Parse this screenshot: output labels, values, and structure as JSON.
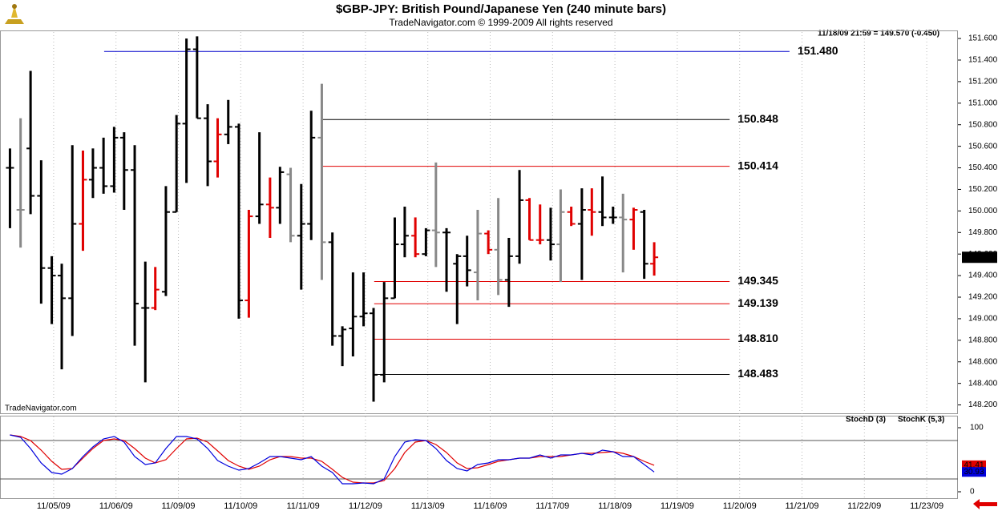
{
  "header": {
    "title": "$GBP-JPY:  British Pound/Japanese Yen  (240 minute bars)",
    "copyright": "TradeNavigator.com © 1999-2009 All rights reserved",
    "last_quote": "11/18/09 21:59 = 149.570 (-0.450)"
  },
  "watermark": "TradeNavigator.com",
  "chart_data": [
    {
      "type": "ohlc",
      "x": [
        -0.7,
        -0.53,
        -0.37,
        -0.2,
        -0.03,
        0.13,
        0.3,
        0.47,
        0.63,
        0.8,
        0.97,
        1.13,
        1.3,
        1.47,
        1.63,
        1.8,
        1.97,
        2.13,
        2.3,
        2.47,
        2.63,
        2.8,
        2.97,
        3.13,
        3.3,
        3.47,
        3.63,
        3.8,
        3.97,
        4.13,
        4.3,
        4.47,
        4.63,
        4.8,
        4.97,
        5.13,
        5.3,
        5.47,
        5.63,
        5.8,
        5.97,
        6.13,
        6.3,
        6.47,
        6.63,
        6.8,
        6.97,
        7.13,
        7.3,
        7.47,
        7.63,
        7.8,
        7.97,
        8.13,
        8.3,
        8.47,
        8.63,
        8.8,
        8.97,
        9.13,
        9.3,
        9.47,
        9.63
      ],
      "open": [
        150.4,
        150.01,
        150.58,
        150.14,
        149.47,
        149.4,
        149.19,
        149.88,
        150.29,
        150.4,
        150.23,
        150.68,
        150.38,
        149.1,
        149.1,
        149.25,
        149.99,
        150.81,
        151.5,
        150.86,
        150.46,
        150.71,
        150.78,
        149.17,
        149.95,
        150.06,
        150.03,
        150.34,
        149.77,
        149.88,
        150.68,
        149.71,
        148.84,
        148.91,
        149.02,
        149.05,
        148.48,
        149.19,
        149.69,
        149.77,
        149.6,
        149.82,
        149.8,
        149.51,
        149.58,
        149.43,
        149.79,
        149.64,
        149.36,
        149.58,
        150.1,
        149.73,
        149.73,
        149.69,
        149.99,
        149.88,
        150.01,
        149.99,
        149.94,
        149.94,
        149.92,
        149.99,
        149.51
      ],
      "high": [
        150.58,
        150.86,
        151.3,
        150.47,
        149.58,
        149.51,
        150.61,
        150.56,
        150.58,
        150.68,
        150.78,
        150.73,
        150.61,
        149.53,
        149.48,
        150.23,
        150.89,
        151.6,
        151.62,
        150.99,
        150.86,
        151.03,
        150.81,
        150.01,
        150.73,
        150.31,
        150.41,
        150.4,
        150.25,
        150.93,
        151.18,
        149.8,
        148.93,
        149.43,
        149.43,
        149.1,
        149.34,
        149.94,
        150.04,
        149.94,
        149.84,
        150.45,
        149.84,
        149.6,
        149.77,
        150.01,
        149.82,
        150.12,
        149.75,
        150.38,
        150.12,
        150.06,
        150.03,
        150.2,
        150.04,
        150.21,
        150.21,
        150.32,
        150.04,
        150.16,
        150.03,
        150.01,
        149.71
      ],
      "low": [
        149.84,
        149.66,
        149.97,
        149.14,
        148.95,
        148.53,
        148.84,
        149.63,
        150.12,
        150.16,
        150.17,
        150.01,
        148.75,
        148.41,
        149.08,
        149.21,
        149.99,
        150.26,
        150.86,
        150.23,
        150.31,
        150.62,
        149.0,
        149.01,
        149.88,
        149.75,
        149.88,
        149.71,
        149.27,
        149.73,
        149.36,
        148.75,
        148.56,
        148.65,
        148.93,
        148.23,
        148.41,
        149.19,
        149.57,
        149.57,
        149.58,
        149.48,
        149.25,
        148.95,
        149.3,
        149.17,
        149.6,
        149.22,
        149.11,
        149.51,
        149.73,
        149.69,
        149.54,
        149.34,
        149.86,
        149.36,
        149.77,
        149.86,
        149.88,
        149.43,
        149.64,
        149.37,
        149.4
      ],
      "close": [
        150.4,
        150.01,
        150.14,
        149.47,
        149.4,
        149.19,
        149.88,
        150.29,
        150.4,
        150.23,
        150.68,
        150.38,
        149.14,
        149.1,
        149.27,
        149.99,
        150.81,
        151.5,
        150.86,
        150.46,
        150.71,
        150.78,
        149.17,
        149.95,
        150.06,
        150.03,
        150.36,
        149.77,
        149.88,
        150.68,
        149.71,
        148.84,
        148.9,
        149.02,
        149.05,
        148.48,
        149.19,
        149.69,
        149.77,
        149.6,
        149.82,
        149.8,
        149.8,
        149.58,
        149.45,
        149.79,
        149.64,
        149.36,
        149.58,
        150.1,
        149.73,
        149.73,
        149.69,
        149.99,
        149.88,
        150.01,
        149.99,
        149.94,
        149.94,
        149.92,
        150.01,
        149.51,
        149.57
      ],
      "bar_colors": [
        "#000000",
        "#888888",
        "#000000",
        "#000000",
        "#000000",
        "#000000",
        "#000000",
        "#e00000",
        "#000000",
        "#000000",
        "#000000",
        "#000000",
        "#000000",
        "#000000",
        "#e00000",
        "#000000",
        "#000000",
        "#000000",
        "#000000",
        "#000000",
        "#e00000",
        "#000000",
        "#000000",
        "#e00000",
        "#000000",
        "#e00000",
        "#000000",
        "#888888",
        "#000000",
        "#000000",
        "#888888",
        "#000000",
        "#000000",
        "#000000",
        "#000000",
        "#000000",
        "#000000",
        "#000000",
        "#000000",
        "#e00000",
        "#000000",
        "#888888",
        "#000000",
        "#000000",
        "#000000",
        "#888888",
        "#e00000",
        "#888888",
        "#000000",
        "#000000",
        "#e00000",
        "#e00000",
        "#000000",
        "#888888",
        "#e00000",
        "#000000",
        "#e00000",
        "#000000",
        "#000000",
        "#888888",
        "#e00000",
        "#000000",
        "#e00000"
      ],
      "xlim": [
        -0.86,
        14.5
      ],
      "xticks": [
        {
          "value": 0,
          "label": "11/05/09"
        },
        {
          "value": 1,
          "label": "11/06/09"
        },
        {
          "value": 2,
          "label": "11/09/09"
        },
        {
          "value": 3,
          "label": "11/10/09"
        },
        {
          "value": 4,
          "label": "11/11/09"
        },
        {
          "value": 5,
          "label": "11/12/09"
        },
        {
          "value": 6,
          "label": "11/13/09"
        },
        {
          "value": 7,
          "label": "11/16/09"
        },
        {
          "value": 8,
          "label": "11/17/09"
        },
        {
          "value": 9,
          "label": "11/18/09"
        },
        {
          "value": 10,
          "label": "11/19/09"
        },
        {
          "value": 11,
          "label": "11/20/09"
        },
        {
          "value": 12,
          "label": "11/21/09"
        },
        {
          "value": 13,
          "label": "11/22/09"
        },
        {
          "value": 14,
          "label": "11/23/09"
        }
      ],
      "ylim": [
        148.13,
        151.66
      ],
      "yticks": [
        {
          "value": 148.2,
          "label": "148.200"
        },
        {
          "value": 148.4,
          "label": "148.400"
        },
        {
          "value": 148.6,
          "label": "148.600"
        },
        {
          "value": 148.8,
          "label": "148.800"
        },
        {
          "value": 149.0,
          "label": "149.000"
        },
        {
          "value": 149.2,
          "label": "149.200"
        },
        {
          "value": 149.4,
          "label": "149.400"
        },
        {
          "value": 149.6,
          "label": "149.600"
        },
        {
          "value": 149.8,
          "label": "149.800"
        },
        {
          "value": 150.0,
          "label": "150.000"
        },
        {
          "value": 150.2,
          "label": "150.200"
        },
        {
          "value": 150.4,
          "label": "150.400"
        },
        {
          "value": 150.6,
          "label": "150.600"
        },
        {
          "value": 150.8,
          "label": "150.800"
        },
        {
          "value": 151.0,
          "label": "151.000"
        },
        {
          "value": 151.2,
          "label": "151.200"
        },
        {
          "value": 151.4,
          "label": "151.400"
        },
        {
          "value": 151.6,
          "label": "151.600"
        }
      ],
      "levels": [
        {
          "value": 151.48,
          "label": "151.480",
          "color": "#0000cc",
          "x_start": 0.81,
          "x_end": 11.8
        },
        {
          "value": 150.848,
          "label": "150.848",
          "color": "#000000",
          "x_start": 4.31,
          "x_end": 10.84
        },
        {
          "value": 150.414,
          "label": "150.414",
          "color": "#e00000",
          "x_start": 4.31,
          "x_end": 10.84
        },
        {
          "value": 149.345,
          "label": "149.345",
          "color": "#e00000",
          "x_start": 5.14,
          "x_end": 10.84
        },
        {
          "value": 149.139,
          "label": "149.139",
          "color": "#e00000",
          "x_start": 5.14,
          "x_end": 10.84
        },
        {
          "value": 148.81,
          "label": "148.810",
          "color": "#e00000",
          "x_start": 5.14,
          "x_end": 10.84
        },
        {
          "value": 148.483,
          "label": "148.483",
          "color": "#000000",
          "x_start": 5.14,
          "x_end": 10.84
        }
      ],
      "last_price": {
        "value": 149.57,
        "label": "149.570"
      }
    },
    {
      "type": "line",
      "x": [
        -0.7,
        -0.53,
        -0.37,
        -0.2,
        -0.03,
        0.13,
        0.3,
        0.47,
        0.63,
        0.8,
        0.97,
        1.13,
        1.3,
        1.47,
        1.63,
        1.8,
        1.97,
        2.13,
        2.3,
        2.47,
        2.63,
        2.8,
        2.97,
        3.13,
        3.3,
        3.47,
        3.63,
        3.8,
        3.97,
        4.13,
        4.3,
        4.47,
        4.63,
        4.8,
        4.97,
        5.13,
        5.3,
        5.47,
        5.63,
        5.8,
        5.97,
        6.13,
        6.3,
        6.47,
        6.63,
        6.8,
        6.97,
        7.13,
        7.3,
        7.47,
        7.63,
        7.8,
        7.97,
        8.13,
        8.3,
        8.47,
        8.63,
        8.8,
        8.97,
        9.13,
        9.3,
        9.47,
        9.63
      ],
      "series": [
        {
          "name": "StochD (3)",
          "color": "#e00000",
          "values": [
            88.8,
            86.3,
            80,
            65,
            47.5,
            35,
            36.3,
            52.5,
            67.5,
            80,
            82.5,
            80,
            67.5,
            52.5,
            45,
            50,
            67.5,
            82.5,
            83.8,
            77.5,
            63.8,
            48.8,
            40,
            35,
            40,
            50,
            55,
            55,
            52.5,
            52.5,
            47.5,
            35,
            22.5,
            15,
            13.8,
            13.8,
            17.5,
            36.3,
            61.3,
            77.5,
            80,
            73.8,
            61.3,
            45,
            36.3,
            37.5,
            42.5,
            47.5,
            50,
            52.5,
            52.5,
            55,
            55,
            55,
            57.5,
            60,
            60,
            61.3,
            62.5,
            60,
            55,
            47.5,
            41.41
          ]
        },
        {
          "name": "StochK (5,3)",
          "color": "#0000dd",
          "values": [
            88.8,
            85,
            67.5,
            45,
            30,
            27.5,
            36.3,
            55,
            70,
            82.5,
            86.3,
            77.5,
            55,
            42.5,
            45,
            67.5,
            86.3,
            86.3,
            82.5,
            67.5,
            48.8,
            40,
            33.8,
            36.3,
            45,
            55,
            55,
            52.5,
            50,
            55,
            40,
            30,
            12.5,
            12.5,
            13.8,
            12.5,
            20,
            55,
            77.5,
            81.3,
            80,
            67.5,
            48.8,
            36.3,
            32.5,
            42.5,
            45,
            50,
            50,
            52.5,
            52.5,
            57.5,
            52.5,
            57.5,
            57.5,
            60,
            57.5,
            65,
            62.5,
            55,
            55,
            42.5,
            30.93
          ]
        }
      ],
      "ylim": [
        -10,
        117.5
      ],
      "yticks": [
        0,
        100
      ],
      "levels": [
        20,
        80
      ]
    }
  ]
}
